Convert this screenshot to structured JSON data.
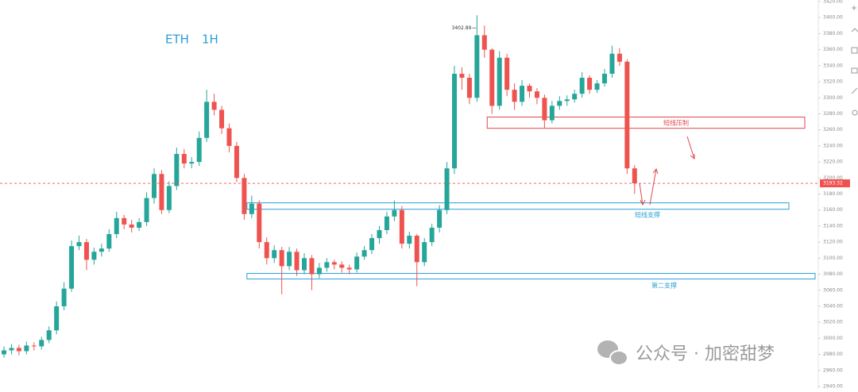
{
  "chart_data": {
    "type": "candlestick",
    "title": "ETH",
    "subtitle": "1H",
    "up_color": "#26a69a",
    "down_color": "#ef5350",
    "ylim": [
      2940,
      3420
    ],
    "yticks": [
      {
        "value": 2940,
        "label": "2940.00"
      },
      {
        "value": 2960,
        "label": "2960.00"
      },
      {
        "value": 2980,
        "label": "2980.00"
      },
      {
        "value": 3000,
        "label": "3000.00"
      },
      {
        "value": 3020,
        "label": "3020.00"
      },
      {
        "value": 3040,
        "label": "3040.00"
      },
      {
        "value": 3060,
        "label": "3060.00"
      },
      {
        "value": 3080,
        "label": "3080.00"
      },
      {
        "value": 3100,
        "label": "3100.00"
      },
      {
        "value": 3120,
        "label": "3120.00"
      },
      {
        "value": 3140,
        "label": "3140.00"
      },
      {
        "value": 3160,
        "label": "3160.00"
      },
      {
        "value": 3180,
        "label": "3180.00"
      },
      {
        "value": 3200,
        "label": "3200.00"
      },
      {
        "value": 3220,
        "label": "3220.00"
      },
      {
        "value": 3240,
        "label": "3240.00"
      },
      {
        "value": 3260,
        "label": "3260.00"
      },
      {
        "value": 3280,
        "label": "3280.00"
      },
      {
        "value": 3300,
        "label": "3300.00"
      },
      {
        "value": 3320,
        "label": "3320.00"
      },
      {
        "value": 3340,
        "label": "3340.00"
      },
      {
        "value": 3360,
        "label": "3360.00"
      },
      {
        "value": 3380,
        "label": "3380.00"
      },
      {
        "value": 3400,
        "label": "3400.00"
      },
      {
        "value": 3420,
        "label": "3420.00"
      }
    ],
    "open": [
      2980,
      2985,
      2988,
      2984,
      2991,
      2990,
      2998,
      3010,
      3040,
      3062,
      3115,
      3120,
      3098,
      3108,
      3112,
      3130,
      3150,
      3142,
      3138,
      3145,
      3175,
      3205,
      3160,
      3190,
      3230,
      3218,
      3220,
      3250,
      3295,
      3285,
      3262,
      3240,
      3200,
      3155,
      3168,
      3120,
      3100,
      3110,
      3090,
      3108,
      3085,
      3100,
      3080,
      3088,
      3095,
      3092,
      3088,
      3086,
      3102,
      3110,
      3125,
      3135,
      3152,
      3160,
      3118,
      3128,
      3095,
      3120,
      3138,
      3160,
      3212,
      3330,
      3325,
      3300,
      3378,
      3360,
      3290,
      3350,
      3310,
      3295,
      3315,
      3308,
      3300,
      3272,
      3290,
      3296,
      3298,
      3305,
      3325,
      3310,
      3318,
      3330,
      3355,
      3345,
      3212
    ],
    "high": [
      2990,
      2993,
      2992,
      2996,
      2995,
      3002,
      3015,
      3046,
      3070,
      3122,
      3128,
      3124,
      3113,
      3118,
      3136,
      3158,
      3154,
      3148,
      3150,
      3182,
      3212,
      3210,
      3196,
      3238,
      3236,
      3226,
      3258,
      3310,
      3305,
      3290,
      3268,
      3245,
      3205,
      3178,
      3172,
      3126,
      3116,
      3114,
      3114,
      3112,
      3106,
      3104,
      3094,
      3100,
      3098,
      3096,
      3092,
      3107,
      3115,
      3130,
      3140,
      3158,
      3172,
      3165,
      3133,
      3130,
      3125,
      3143,
      3166,
      3220,
      3340,
      3338,
      3330,
      3402.89,
      3390,
      3362,
      3358,
      3355,
      3318,
      3322,
      3318,
      3312,
      3304,
      3296,
      3302,
      3303,
      3310,
      3332,
      3328,
      3322,
      3336,
      3365,
      3362,
      3348,
      3216
    ],
    "low": [
      2976,
      2980,
      2979,
      2980,
      2985,
      2986,
      2994,
      3005,
      3035,
      3058,
      3110,
      3085,
      3092,
      3102,
      3108,
      3125,
      3136,
      3132,
      3134,
      3140,
      3168,
      3155,
      3156,
      3185,
      3212,
      3212,
      3215,
      3245,
      3278,
      3255,
      3232,
      3195,
      3148,
      3150,
      3112,
      3092,
      3094,
      3055,
      3085,
      3078,
      3080,
      3060,
      3075,
      3083,
      3086,
      3082,
      3080,
      3082,
      3098,
      3105,
      3118,
      3130,
      3146,
      3112,
      3112,
      3065,
      3090,
      3115,
      3132,
      3155,
      3205,
      3310,
      3292,
      3295,
      3350,
      3280,
      3285,
      3302,
      3285,
      3290,
      3300,
      3292,
      3262,
      3268,
      3285,
      3290,
      3294,
      3300,
      3305,
      3306,
      3314,
      3325,
      3340,
      3205,
      3180
    ],
    "close": [
      2985,
      2988,
      2984,
      2991,
      2990,
      2998,
      3010,
      3040,
      3062,
      3115,
      3120,
      3098,
      3108,
      3112,
      3130,
      3150,
      3142,
      3138,
      3145,
      3175,
      3205,
      3160,
      3190,
      3230,
      3218,
      3220,
      3250,
      3295,
      3285,
      3262,
      3240,
      3200,
      3155,
      3168,
      3120,
      3100,
      3110,
      3090,
      3108,
      3085,
      3100,
      3080,
      3088,
      3095,
      3092,
      3088,
      3086,
      3102,
      3110,
      3125,
      3135,
      3152,
      3160,
      3118,
      3128,
      3095,
      3120,
      3138,
      3160,
      3212,
      3330,
      3325,
      3300,
      3378,
      3360,
      3290,
      3350,
      3310,
      3295,
      3315,
      3308,
      3300,
      3272,
      3290,
      3296,
      3298,
      3305,
      3325,
      3310,
      3318,
      3330,
      3355,
      3345,
      3212,
      3193.32
    ],
    "zones": [
      {
        "label": "短线压制",
        "top": 3276,
        "bottom": 3262,
        "from": 65,
        "color": "#e0474c"
      },
      {
        "label": "短线支撑",
        "top": 3169,
        "bottom": 3161,
        "from": 33,
        "color": "#2a9fd6"
      },
      {
        "label": "第二支撑",
        "top": 3081,
        "bottom": 3074,
        "from": 33,
        "color": "#2a9fd6"
      }
    ],
    "watermark": "公众号 · 加密甜梦"
  }
}
